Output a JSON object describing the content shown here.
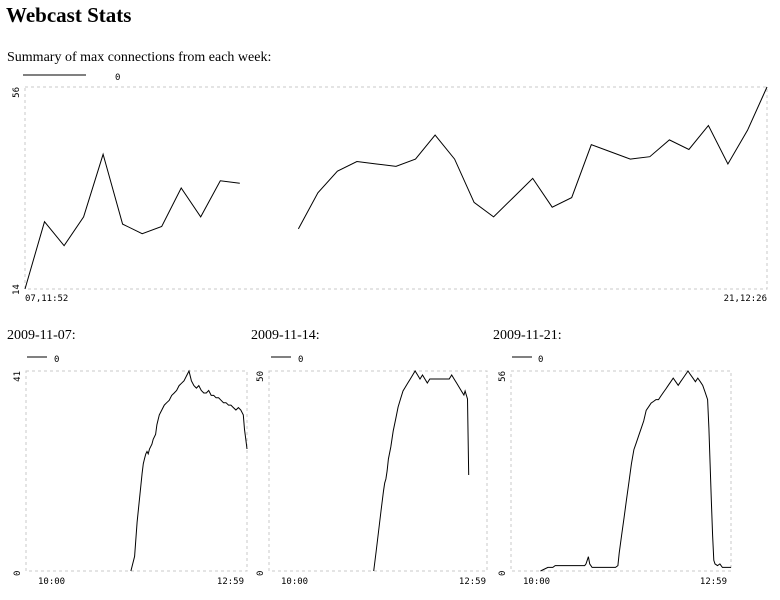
{
  "page": {
    "title": "Webcast Stats",
    "summary_caption": "Summary of max connections from each week:"
  },
  "chart_data": [
    {
      "id": "summary",
      "type": "line",
      "title": "Summary of max connections from each week:",
      "xlabel": "",
      "ylabel": "",
      "legend": {
        "entries": [
          "0"
        ],
        "position": "top-left"
      },
      "x_tick_labels": [
        "07,11:52",
        "21,12:26"
      ],
      "y_tick_labels": [
        "14",
        "56"
      ],
      "ylim": [
        14,
        56
      ],
      "grid": false,
      "series": [
        {
          "segments": [
            [
              [
                0,
                14
              ],
              [
                1,
                28
              ],
              [
                2,
                23
              ],
              [
                3,
                29
              ],
              [
                4,
                42
              ],
              [
                5,
                27.5
              ],
              [
                6,
                25.5
              ],
              [
                7,
                27
              ],
              [
                8,
                35
              ],
              [
                9,
                29
              ],
              [
                10,
                36.5
              ],
              [
                11,
                36
              ]
            ],
            [
              [
                14,
                26.5
              ],
              [
                15,
                34
              ],
              [
                16,
                38.5
              ],
              [
                17,
                40.5
              ],
              [
                18,
                40
              ],
              [
                19,
                39.5
              ],
              [
                20,
                41
              ],
              [
                21,
                46
              ],
              [
                22,
                41
              ],
              [
                23,
                32
              ],
              [
                24,
                29
              ],
              [
                25,
                33
              ],
              [
                26,
                37
              ],
              [
                27,
                31
              ],
              [
                28,
                33
              ],
              [
                29,
                44
              ],
              [
                30,
                42.5
              ],
              [
                31,
                41
              ],
              [
                32,
                41.5
              ],
              [
                33,
                45
              ],
              [
                34,
                43
              ],
              [
                35,
                48
              ],
              [
                36,
                40
              ],
              [
                37,
                47
              ],
              [
                38,
                56
              ]
            ]
          ]
        }
      ]
    },
    {
      "id": "day-2009-11-07",
      "type": "line",
      "title": "2009-11-07:",
      "xlabel": "",
      "ylabel": "",
      "legend": {
        "entries": [
          "0"
        ],
        "position": "top-left"
      },
      "x_tick_labels": [
        "10:00",
        "12:59"
      ],
      "y_tick_labels": [
        "0",
        "41"
      ],
      "xlim": [
        0,
        179
      ],
      "ylim": [
        0,
        41
      ],
      "grid": false,
      "series": [
        {
          "points": [
            [
              85,
              0
            ],
            [
              88,
              3
            ],
            [
              90,
              10
            ],
            [
              92,
              15
            ],
            [
              94,
              20
            ],
            [
              95,
              22
            ],
            [
              96,
              23
            ],
            [
              97,
              24
            ],
            [
              98,
              24.5
            ],
            [
              99,
              24
            ],
            [
              100,
              25
            ],
            [
              102,
              26
            ],
            [
              103,
              27
            ],
            [
              105,
              28
            ],
            [
              106,
              30
            ],
            [
              107,
              31
            ],
            [
              108,
              32
            ],
            [
              110,
              33
            ],
            [
              112,
              34
            ],
            [
              114,
              34.5
            ],
            [
              116,
              35
            ],
            [
              118,
              36
            ],
            [
              120,
              36.5
            ],
            [
              122,
              37
            ],
            [
              124,
              38
            ],
            [
              126,
              38.5
            ],
            [
              128,
              39
            ],
            [
              130,
              40
            ],
            [
              132,
              41
            ],
            [
              133,
              40
            ],
            [
              134,
              39
            ],
            [
              136,
              38
            ],
            [
              138,
              37.5
            ],
            [
              140,
              38
            ],
            [
              142,
              37
            ],
            [
              144,
              36.5
            ],
            [
              146,
              36.5
            ],
            [
              148,
              37
            ],
            [
              150,
              36
            ],
            [
              152,
              36
            ],
            [
              154,
              35.5
            ],
            [
              156,
              35.5
            ],
            [
              158,
              35
            ],
            [
              160,
              34.5
            ],
            [
              162,
              34.5
            ],
            [
              164,
              34
            ],
            [
              166,
              34
            ],
            [
              168,
              33.5
            ],
            [
              170,
              33
            ],
            [
              172,
              33.5
            ],
            [
              174,
              33
            ],
            [
              176,
              32
            ],
            [
              177,
              29
            ],
            [
              178,
              27
            ],
            [
              179,
              25
            ]
          ]
        }
      ]
    },
    {
      "id": "day-2009-11-14",
      "type": "line",
      "title": "2009-11-14:",
      "xlabel": "",
      "ylabel": "",
      "legend": {
        "entries": [
          "0"
        ],
        "position": "top-left"
      },
      "x_tick_labels": [
        "10:00",
        "12:59"
      ],
      "y_tick_labels": [
        "0",
        "50"
      ],
      "xlim": [
        0,
        179
      ],
      "ylim": [
        0,
        50
      ],
      "grid": false,
      "series": [
        {
          "points": [
            [
              86,
              0
            ],
            [
              88,
              5
            ],
            [
              90,
              10
            ],
            [
              92,
              15
            ],
            [
              94,
              20
            ],
            [
              95,
              22
            ],
            [
              96,
              23
            ],
            [
              97,
              25
            ],
            [
              98,
              28
            ],
            [
              100,
              31
            ],
            [
              102,
              35
            ],
            [
              104,
              38
            ],
            [
              106,
              41
            ],
            [
              108,
              43
            ],
            [
              110,
              45
            ],
            [
              112,
              46
            ],
            [
              114,
              47
            ],
            [
              116,
              48
            ],
            [
              118,
              49
            ],
            [
              120,
              50
            ],
            [
              122,
              49
            ],
            [
              124,
              48
            ],
            [
              126,
              49
            ],
            [
              128,
              48
            ],
            [
              130,
              47
            ],
            [
              132,
              48
            ],
            [
              134,
              48
            ],
            [
              136,
              48
            ],
            [
              138,
              48
            ],
            [
              140,
              48
            ],
            [
              142,
              48
            ],
            [
              144,
              48
            ],
            [
              146,
              48
            ],
            [
              148,
              48
            ],
            [
              150,
              49
            ],
            [
              152,
              48
            ],
            [
              154,
              47
            ],
            [
              156,
              46
            ],
            [
              158,
              45
            ],
            [
              160,
              44
            ],
            [
              161,
              45
            ],
            [
              162,
              44
            ],
            [
              163,
              43
            ],
            [
              164,
              24
            ]
          ]
        }
      ]
    },
    {
      "id": "day-2009-11-21",
      "type": "line",
      "title": "2009-11-21:",
      "xlabel": "",
      "ylabel": "",
      "legend": {
        "entries": [
          "0"
        ],
        "position": "top-left"
      },
      "x_tick_labels": [
        "10:00",
        "12:59"
      ],
      "y_tick_labels": [
        "0",
        "56"
      ],
      "xlim": [
        0,
        179
      ],
      "ylim": [
        0,
        56
      ],
      "grid": false,
      "series": [
        {
          "points": [
            [
              24,
              0
            ],
            [
              30,
              1
            ],
            [
              34,
              1
            ],
            [
              36,
              1.5
            ],
            [
              40,
              1.5
            ],
            [
              50,
              1.5
            ],
            [
              55,
              1.5
            ],
            [
              60,
              1.5
            ],
            [
              61,
              2
            ],
            [
              62,
              3
            ],
            [
              63,
              4
            ],
            [
              64,
              2
            ],
            [
              66,
              1
            ],
            [
              70,
              1
            ],
            [
              80,
              1
            ],
            [
              85,
              1
            ],
            [
              87,
              1.5
            ],
            [
              88,
              5
            ],
            [
              90,
              10
            ],
            [
              92,
              15
            ],
            [
              94,
              20
            ],
            [
              96,
              25
            ],
            [
              98,
              30
            ],
            [
              100,
              34
            ],
            [
              102,
              36
            ],
            [
              104,
              38
            ],
            [
              106,
              40
            ],
            [
              108,
              42
            ],
            [
              110,
              45
            ],
            [
              112,
              46
            ],
            [
              114,
              47
            ],
            [
              116,
              47.5
            ],
            [
              118,
              48
            ],
            [
              120,
              48
            ],
            [
              122,
              49
            ],
            [
              124,
              50
            ],
            [
              126,
              51
            ],
            [
              128,
              52
            ],
            [
              130,
              53
            ],
            [
              132,
              54
            ],
            [
              134,
              53
            ],
            [
              136,
              52
            ],
            [
              138,
              53
            ],
            [
              140,
              54
            ],
            [
              142,
              55
            ],
            [
              144,
              56
            ],
            [
              146,
              55
            ],
            [
              148,
              54
            ],
            [
              150,
              53
            ],
            [
              152,
              54
            ],
            [
              154,
              53
            ],
            [
              156,
              52
            ],
            [
              158,
              50
            ],
            [
              160,
              48
            ],
            [
              161,
              40
            ],
            [
              162,
              30
            ],
            [
              163,
              20
            ],
            [
              164,
              10
            ],
            [
              165,
              3
            ],
            [
              166,
              2
            ],
            [
              168,
              1.5
            ],
            [
              170,
              2
            ],
            [
              172,
              1
            ],
            [
              174,
              1
            ],
            [
              176,
              1
            ],
            [
              178,
              1
            ],
            [
              179,
              1
            ]
          ]
        }
      ]
    }
  ],
  "day_labels": [
    "2009-11-07:",
    "2009-11-14:",
    "2009-11-21:"
  ]
}
